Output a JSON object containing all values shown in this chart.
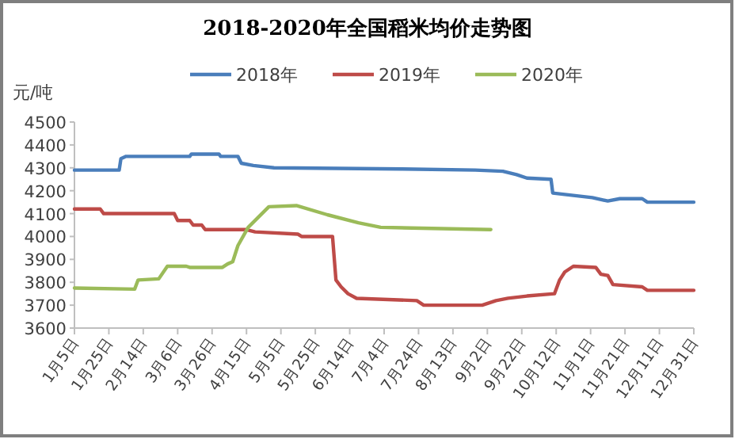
{
  "chart_data": {
    "type": "line",
    "title": "2018-2020年全国稻米均价走势图",
    "ylabel": "元/吨",
    "legend": "top",
    "grid": false,
    "marker": "none",
    "line_style": "solid",
    "xlim": [
      "--01-05",
      "--12-31"
    ],
    "xticks": [
      {
        "value": "--01-05",
        "label": "1月5日"
      },
      {
        "value": "--01-25",
        "label": "1月25日"
      },
      {
        "value": "--02-14",
        "label": "2月14日"
      },
      {
        "value": "--03-06",
        "label": "3月6日"
      },
      {
        "value": "--03-26",
        "label": "3月26日"
      },
      {
        "value": "--04-15",
        "label": "4月15日"
      },
      {
        "value": "--05-05",
        "label": "5月5日"
      },
      {
        "value": "--05-25",
        "label": "5月25日"
      },
      {
        "value": "--06-14",
        "label": "6月14日"
      },
      {
        "value": "--07-04",
        "label": "7月4日"
      },
      {
        "value": "--07-24",
        "label": "7月24日"
      },
      {
        "value": "--08-13",
        "label": "8月13日"
      },
      {
        "value": "--09-02",
        "label": "9月2日"
      },
      {
        "value": "--09-22",
        "label": "9月22日"
      },
      {
        "value": "--10-12",
        "label": "10月12日"
      },
      {
        "value": "--11-01",
        "label": "11月1日"
      },
      {
        "value": "--11-21",
        "label": "11月21日"
      },
      {
        "value": "--12-11",
        "label": "12月11日"
      },
      {
        "value": "--12-31",
        "label": "12月31日"
      }
    ],
    "ylim": [
      3600,
      4500
    ],
    "yticks": [
      3600,
      3700,
      3800,
      3900,
      4000,
      4100,
      4200,
      4300,
      4400,
      4500
    ],
    "series": [
      {
        "name": "2018年",
        "color": "#4a7ebb",
        "x": [
          "--01-05",
          "--01-31",
          "--02-01",
          "--02-04",
          "--03-13",
          "--03-14",
          "--03-30",
          "--03-31",
          "--04-10",
          "--04-12",
          "--04-19",
          "--05-01",
          "--07-14",
          "--08-26",
          "--09-11",
          "--09-19",
          "--09-25",
          "--10-09",
          "--10-10",
          "--10-21",
          "--11-02",
          "--11-11",
          "--11-18",
          "--12-01",
          "--12-04",
          "--12-31"
        ],
        "values": [
          4290,
          4290,
          4340,
          4350,
          4350,
          4360,
          4360,
          4350,
          4350,
          4320,
          4310,
          4300,
          4295,
          4290,
          4285,
          4270,
          4255,
          4250,
          4190,
          4180,
          4170,
          4155,
          4165,
          4165,
          4150,
          4150
        ]
      },
      {
        "name": "2019年",
        "color": "#be4b48",
        "x": [
          "--01-05",
          "--01-20",
          "--01-22",
          "--03-04",
          "--03-06",
          "--03-13",
          "--03-15",
          "--03-20",
          "--03-22",
          "--04-15",
          "--04-20",
          "--05-15",
          "--05-17",
          "--06-04",
          "--06-06",
          "--06-09",
          "--06-13",
          "--06-18",
          "--07-23",
          "--07-27",
          "--08-30",
          "--09-07",
          "--09-14",
          "--09-25",
          "--10-11",
          "--10-14",
          "--10-17",
          "--10-22",
          "--11-04",
          "--11-07",
          "--11-11",
          "--11-14",
          "--12-01",
          "--12-04",
          "--12-31"
        ],
        "values": [
          4120,
          4120,
          4100,
          4100,
          4070,
          4070,
          4050,
          4050,
          4030,
          4030,
          4020,
          4010,
          4000,
          4000,
          3810,
          3780,
          3750,
          3730,
          3720,
          3700,
          3700,
          3720,
          3730,
          3740,
          3750,
          3810,
          3845,
          3870,
          3865,
          3835,
          3830,
          3790,
          3780,
          3765,
          3765
        ]
      },
      {
        "name": "2020年",
        "color": "#9bbb59",
        "x": [
          "--01-05",
          "--02-09",
          "--02-11",
          "--02-23",
          "--02-28",
          "--03-11",
          "--03-13",
          "--04-01",
          "--04-04",
          "--04-07",
          "--04-10",
          "--04-16",
          "--04-22",
          "--04-28",
          "--05-14",
          "--06-01",
          "--06-19",
          "--07-02",
          "--09-04"
        ],
        "values": [
          3775,
          3770,
          3810,
          3815,
          3870,
          3870,
          3865,
          3865,
          3880,
          3890,
          3960,
          4040,
          4085,
          4130,
          4135,
          4095,
          4060,
          4040,
          4030
        ]
      }
    ]
  }
}
